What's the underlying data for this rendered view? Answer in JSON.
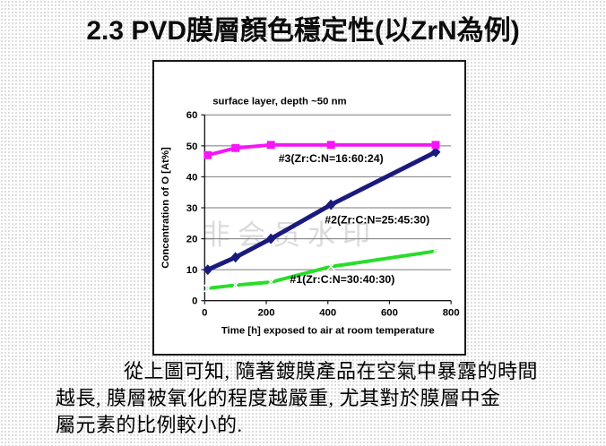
{
  "slide": {
    "title": "2.3  PVD膜層顏色穩定性(以ZrN為例)",
    "body_lines": [
      "從上圖可知, 隨著鍍膜產品在空氣中暴露的時間",
      "越長, 膜層被氧化的程度越嚴重, 尤其對於膜層中金",
      "屬元素的比例較小的."
    ]
  },
  "watermark_text": "非会员水印",
  "chart_data": {
    "type": "line",
    "title": "surface layer, depth ~50 nm",
    "xlabel": "Time [h] exposed to air at room temperature",
    "ylabel": "Concentration of O [At%]",
    "xlim": [
      0,
      800
    ],
    "ylim": [
      0,
      60
    ],
    "x_ticks": [
      0,
      200,
      400,
      600,
      800
    ],
    "y_ticks": [
      0,
      10,
      20,
      30,
      40,
      50,
      60
    ],
    "grid": "horizontal",
    "legend_position": "inline-labels",
    "x": [
      10,
      100,
      215,
      410,
      750
    ],
    "series": [
      {
        "name": "#1(Zr:C:N=30:40:30)",
        "color": "#28dd28",
        "marker": "x-marker",
        "values": [
          4,
          5,
          6,
          11,
          16
        ],
        "label_at": [
          447,
          5.7
        ]
      },
      {
        "name": "#2(Zr:C:N=25:45:30)",
        "color": "#1a1a7e",
        "marker": "diamond-marker",
        "values": [
          10,
          14,
          20,
          31,
          48
        ],
        "label_at": [
          560,
          25
        ]
      },
      {
        "name": "#3(Zr:C:N=16:60:24)",
        "color": "#f714f7",
        "marker": "square-marker",
        "values": [
          47,
          49.3,
          50.3,
          50.3,
          50.3
        ],
        "label_at": [
          410,
          44.8
        ]
      }
    ],
    "colors": {
      "gridline": "#7a7a7a",
      "axis": "#1a1a1a",
      "text": "#000000"
    }
  }
}
